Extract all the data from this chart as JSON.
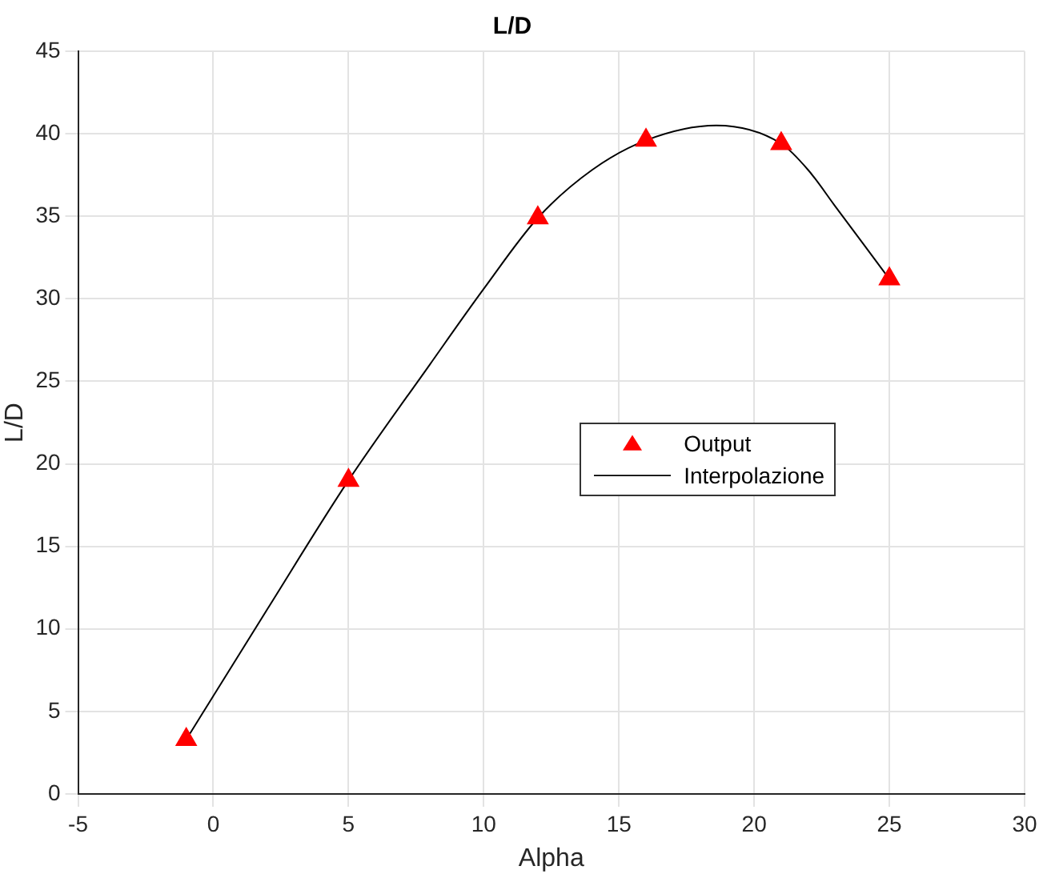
{
  "chart_data": {
    "type": "scatter",
    "title": "L/D",
    "xlabel": "Alpha",
    "ylabel": "L/D",
    "xlim": [
      -5,
      30
    ],
    "xticks": [
      -5,
      0,
      5,
      10,
      15,
      20,
      25,
      30
    ],
    "ylim": [
      0,
      45
    ],
    "yticks": [
      0,
      5,
      10,
      15,
      20,
      25,
      30,
      35,
      40,
      45
    ],
    "grid": true,
    "legend": "right",
    "series": [
      {
        "name": "Output",
        "color": "#ff0000",
        "marker": "triangle",
        "x": [
          -1,
          5,
          12,
          16,
          21,
          25
        ],
        "values": [
          3.3,
          19,
          34.9,
          39.6,
          39.4,
          31.2
        ]
      },
      {
        "name": "Interpolazione",
        "type": "line",
        "color": "#000000",
        "marker": "none",
        "line_style": "solid",
        "x": [
          -1,
          2,
          5,
          8,
          10,
          12,
          14,
          16,
          18.6,
          21,
          22,
          23,
          25
        ],
        "values": [
          3.3,
          11.2,
          19,
          26,
          30.6,
          34.9,
          37.8,
          39.6,
          40.5,
          39.4,
          37.8,
          35.6,
          31.2
        ]
      }
    ]
  }
}
